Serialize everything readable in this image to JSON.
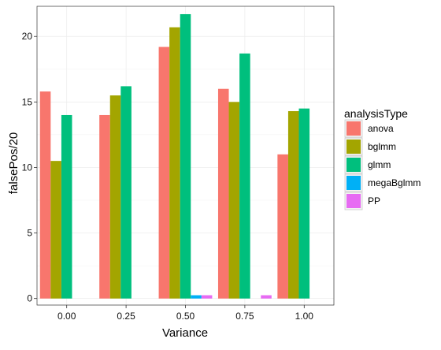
{
  "chart_data": {
    "type": "bar",
    "xlabel": "Variance",
    "ylabel": "falsePos/20",
    "categories": [
      "0.00",
      "0.25",
      "0.50",
      "0.75",
      "1.00"
    ],
    "category_values": [
      0,
      0.25,
      0.5,
      0.75,
      1.0
    ],
    "y_ticks": [
      0,
      5,
      10,
      15,
      20
    ],
    "y_tick_labels": [
      "0",
      "5",
      "10",
      "15",
      "20"
    ],
    "ylim": [
      -0.5,
      22.3
    ],
    "xlim": [
      -0.125,
      1.125
    ],
    "grid": true,
    "legend_position": "right",
    "legend_title": "analysisType",
    "series": [
      {
        "name": "anova",
        "color": "#F8766D",
        "values": [
          15.8,
          14.0,
          19.2,
          16.0,
          11.0
        ]
      },
      {
        "name": "bglmm",
        "color": "#A3A500",
        "values": [
          10.5,
          15.5,
          20.7,
          15.0,
          14.3
        ]
      },
      {
        "name": "glmm",
        "color": "#00BF7D",
        "values": [
          14.0,
          16.2,
          21.7,
          18.7,
          14.5
        ]
      },
      {
        "name": "megaBglmm",
        "color": "#00B0F6",
        "values": [
          0,
          0,
          0.25,
          0,
          0
        ]
      },
      {
        "name": "PP",
        "color": "#E76BF3",
        "values": [
          0,
          0,
          0.25,
          0.25,
          0
        ]
      }
    ]
  }
}
